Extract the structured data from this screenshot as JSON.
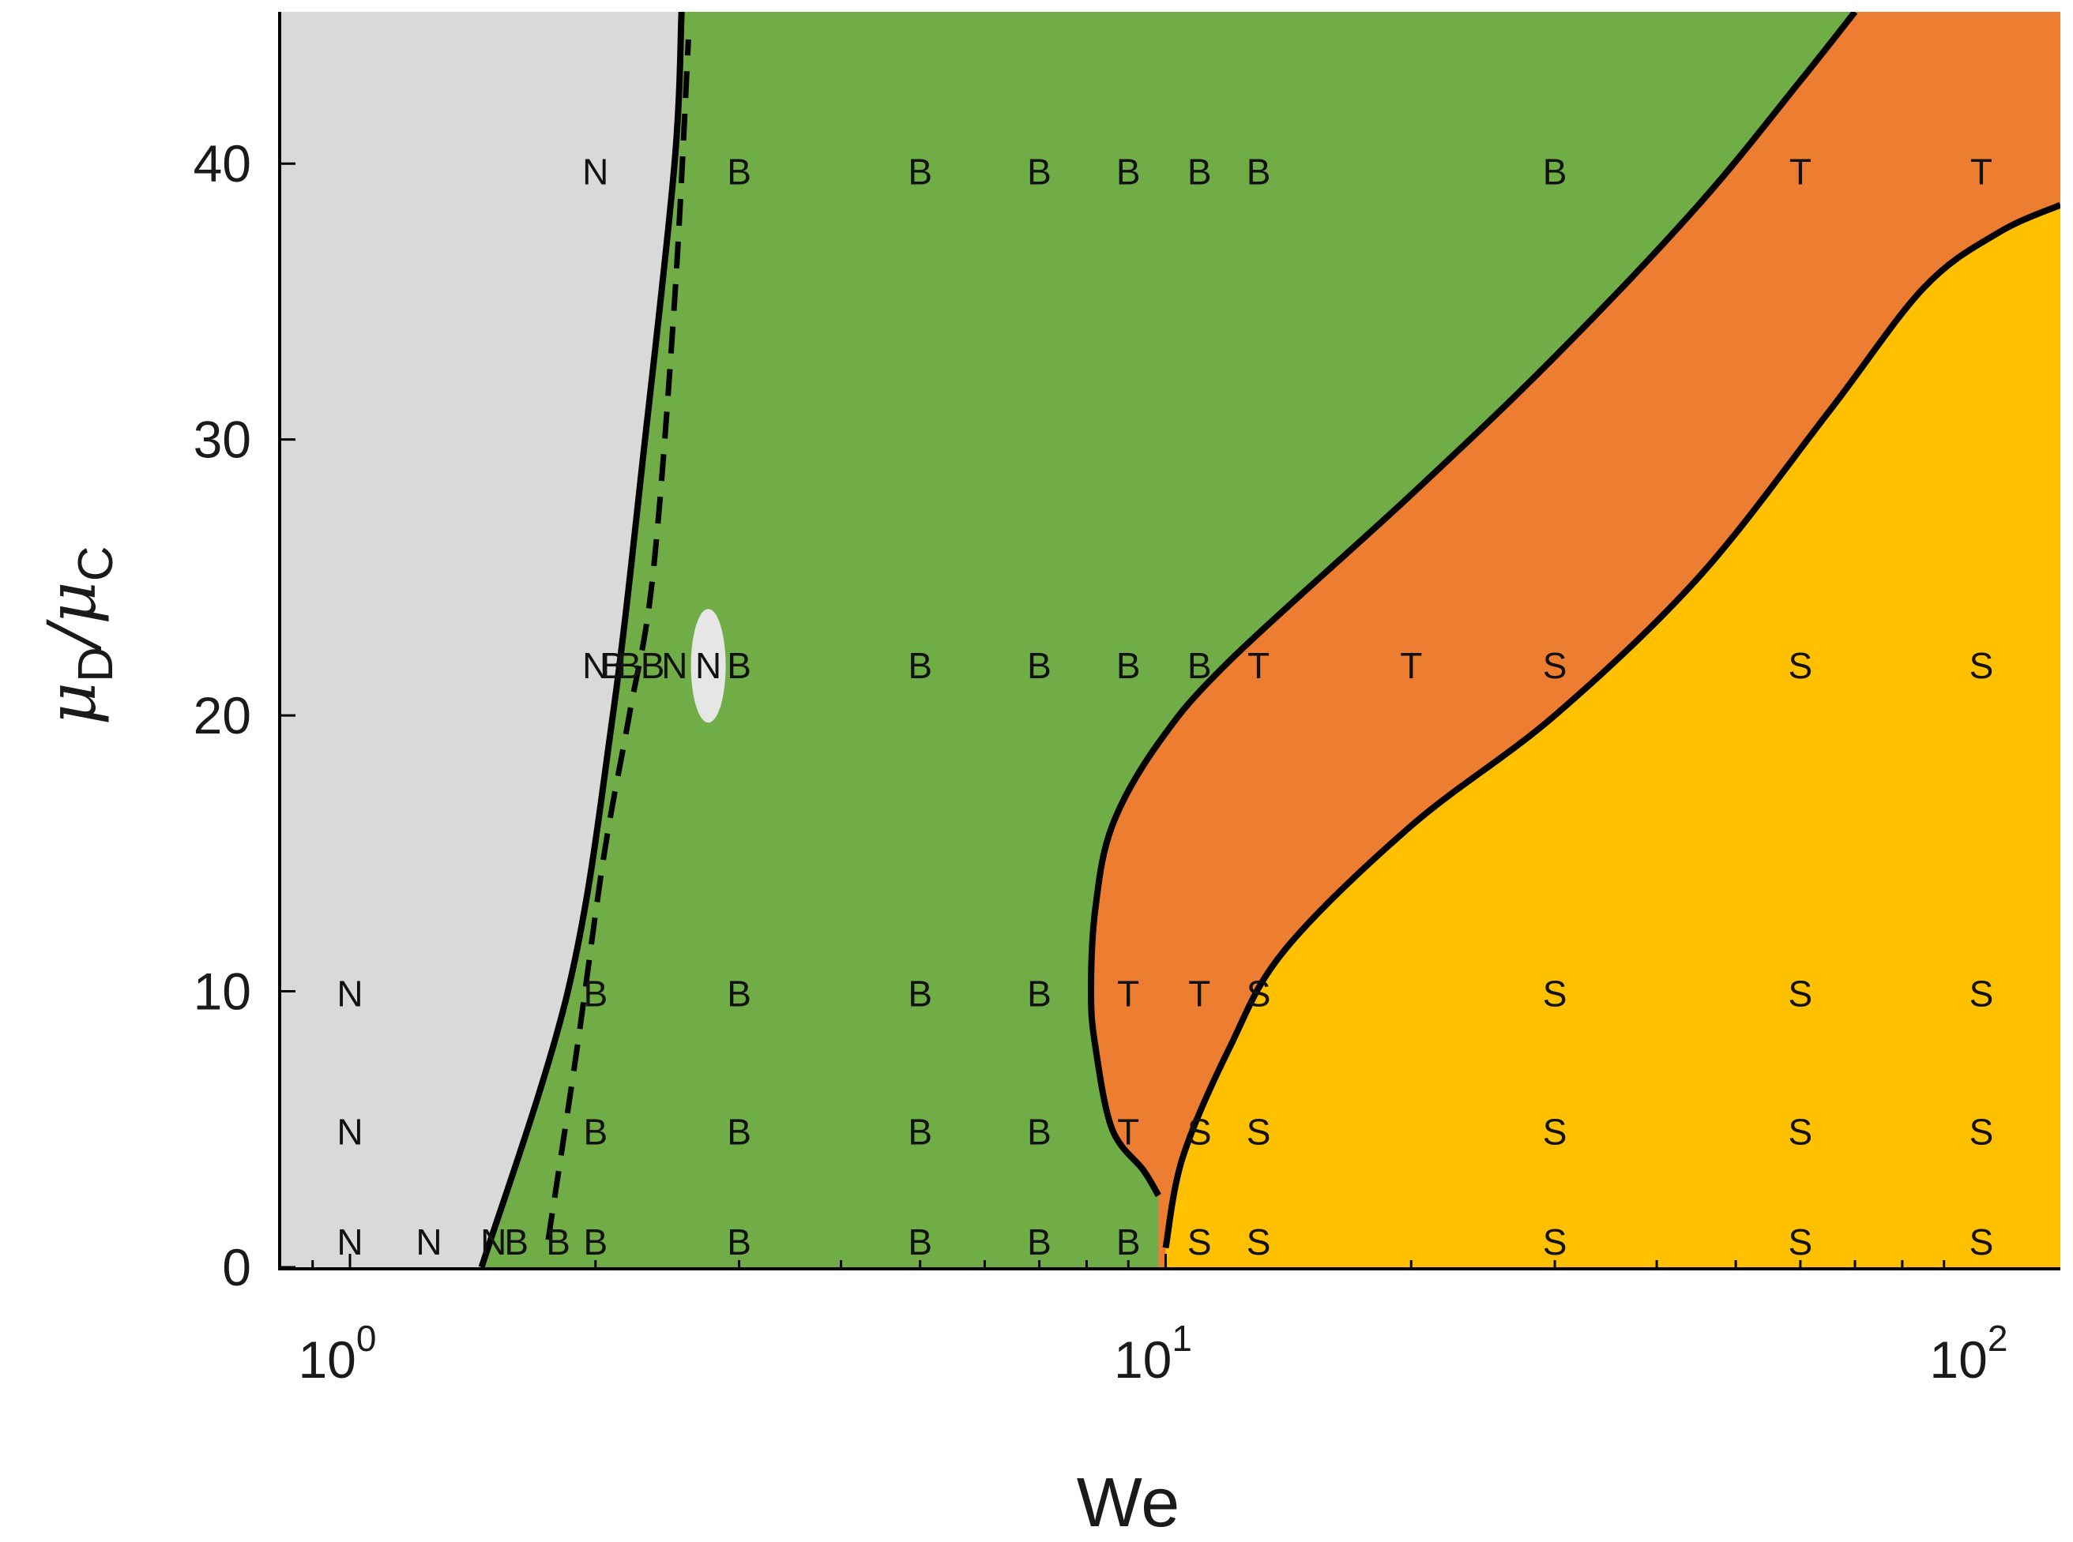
{
  "chart_data": {
    "type": "scatter",
    "subtype": "regime map with labeled markers",
    "title": "",
    "xlabel": "We",
    "ylabel": {
      "base": "μ",
      "sub1": "D",
      "sep": "/",
      "sub2": "C"
    },
    "x_scale": "log",
    "xlim": [
      0.82,
      125
    ],
    "ylim": [
      0,
      45.5
    ],
    "x_ticks": [
      {
        "value": 1,
        "base": "10",
        "exp": "0"
      },
      {
        "value": 10,
        "base": "10",
        "exp": "1"
      },
      {
        "value": 100,
        "base": "10",
        "exp": "2"
      }
    ],
    "y_ticks": [
      0,
      10,
      20,
      30,
      40
    ],
    "grid": false,
    "colors": {
      "N": "#d9d9d9",
      "B": "#70ad47",
      "T": "#ed7d31",
      "S": "#ffc000",
      "boundary": "#000000"
    },
    "regions": [
      {
        "label": "N",
        "color": "#d9d9d9",
        "upper_we_boundary": [
          [
            1.45,
            0
          ],
          [
            1.85,
            10
          ],
          [
            2.1,
            20
          ],
          [
            2.3,
            30
          ],
          [
            2.5,
            40
          ],
          [
            2.55,
            45.5
          ]
        ]
      },
      {
        "label": "B",
        "color": "#70ad47"
      },
      {
        "label": "T",
        "color": "#ed7d31",
        "lower_we_boundary": [
          [
            9.8,
            2.6
          ],
          [
            9.4,
            3.5
          ],
          [
            8.6,
            5
          ],
          [
            8.2,
            8
          ],
          [
            8.1,
            10
          ],
          [
            8.2,
            13
          ],
          [
            8.6,
            16
          ],
          [
            9.8,
            19
          ],
          [
            12,
            22
          ],
          [
            20,
            28
          ],
          [
            30,
            33
          ],
          [
            45,
            38.5
          ],
          [
            60,
            43
          ],
          [
            70,
            45.5
          ]
        ]
      },
      {
        "label": "S",
        "color": "#ffc000",
        "lower_we_boundary": [
          [
            10,
            0.7
          ],
          [
            10.5,
            4
          ],
          [
            12,
            8
          ],
          [
            14,
            11.5
          ],
          [
            20,
            16
          ],
          [
            30,
            20
          ],
          [
            45,
            25
          ],
          [
            65,
            31
          ],
          [
            85,
            35.5
          ],
          [
            105,
            37.5
          ],
          [
            125,
            38.5
          ]
        ]
      }
    ],
    "points": [
      {
        "x": 1.0,
        "y": 0.8,
        "label": "N"
      },
      {
        "x": 1.25,
        "y": 0.8,
        "label": "N"
      },
      {
        "x": 1.5,
        "y": 0.8,
        "label": "N"
      },
      {
        "x": 1.6,
        "y": 0.8,
        "label": "B"
      },
      {
        "x": 1.8,
        "y": 0.8,
        "label": "B"
      },
      {
        "x": 2.0,
        "y": 0.8,
        "label": "B"
      },
      {
        "x": 3.0,
        "y": 0.8,
        "label": "B"
      },
      {
        "x": 5.0,
        "y": 0.8,
        "label": "B"
      },
      {
        "x": 7.0,
        "y": 0.8,
        "label": "B"
      },
      {
        "x": 9.0,
        "y": 0.8,
        "label": "B"
      },
      {
        "x": 11.0,
        "y": 0.8,
        "label": "S"
      },
      {
        "x": 13.0,
        "y": 0.8,
        "label": "S"
      },
      {
        "x": 30.0,
        "y": 0.8,
        "label": "S"
      },
      {
        "x": 60.0,
        "y": 0.8,
        "label": "S"
      },
      {
        "x": 100.0,
        "y": 0.8,
        "label": "S"
      },
      {
        "x": 1.0,
        "y": 4.8,
        "label": "N"
      },
      {
        "x": 2.0,
        "y": 4.8,
        "label": "B"
      },
      {
        "x": 3.0,
        "y": 4.8,
        "label": "B"
      },
      {
        "x": 5.0,
        "y": 4.8,
        "label": "B"
      },
      {
        "x": 7.0,
        "y": 4.8,
        "label": "B"
      },
      {
        "x": 9.0,
        "y": 4.8,
        "label": "T"
      },
      {
        "x": 11.0,
        "y": 4.8,
        "label": "S"
      },
      {
        "x": 13.0,
        "y": 4.8,
        "label": "S"
      },
      {
        "x": 30.0,
        "y": 4.8,
        "label": "S"
      },
      {
        "x": 60.0,
        "y": 4.8,
        "label": "S"
      },
      {
        "x": 100.0,
        "y": 4.8,
        "label": "S"
      },
      {
        "x": 1.0,
        "y": 9.8,
        "label": "N"
      },
      {
        "x": 2.0,
        "y": 9.8,
        "label": "B"
      },
      {
        "x": 3.0,
        "y": 9.8,
        "label": "B"
      },
      {
        "x": 5.0,
        "y": 9.8,
        "label": "B"
      },
      {
        "x": 7.0,
        "y": 9.8,
        "label": "B"
      },
      {
        "x": 9.0,
        "y": 9.8,
        "label": "T"
      },
      {
        "x": 11.0,
        "y": 9.8,
        "label": "T"
      },
      {
        "x": 13.0,
        "y": 9.8,
        "label": "S"
      },
      {
        "x": 30.0,
        "y": 9.8,
        "label": "S"
      },
      {
        "x": 60.0,
        "y": 9.8,
        "label": "S"
      },
      {
        "x": 100.0,
        "y": 9.8,
        "label": "S"
      },
      {
        "x": 2.0,
        "y": 21.7,
        "label": "N"
      },
      {
        "x": 2.1,
        "y": 21.7,
        "label": "B"
      },
      {
        "x": 2.2,
        "y": 21.7,
        "label": "B"
      },
      {
        "x": 2.35,
        "y": 21.7,
        "label": "B"
      },
      {
        "x": 2.5,
        "y": 21.7,
        "label": "N"
      },
      {
        "x": 2.75,
        "y": 21.7,
        "label": "N"
      },
      {
        "x": 3.0,
        "y": 21.7,
        "label": "B"
      },
      {
        "x": 5.0,
        "y": 21.7,
        "label": "B"
      },
      {
        "x": 7.0,
        "y": 21.7,
        "label": "B"
      },
      {
        "x": 9.0,
        "y": 21.7,
        "label": "B"
      },
      {
        "x": 11.0,
        "y": 21.7,
        "label": "B"
      },
      {
        "x": 13.0,
        "y": 21.7,
        "label": "T"
      },
      {
        "x": 20.0,
        "y": 21.7,
        "label": "T"
      },
      {
        "x": 30.0,
        "y": 21.7,
        "label": "S"
      },
      {
        "x": 60.0,
        "y": 21.7,
        "label": "S"
      },
      {
        "x": 100.0,
        "y": 21.7,
        "label": "S"
      },
      {
        "x": 2.0,
        "y": 39.6,
        "label": "N"
      },
      {
        "x": 3.0,
        "y": 39.6,
        "label": "B"
      },
      {
        "x": 5.0,
        "y": 39.6,
        "label": "B"
      },
      {
        "x": 7.0,
        "y": 39.6,
        "label": "B"
      },
      {
        "x": 9.0,
        "y": 39.6,
        "label": "B"
      },
      {
        "x": 11.0,
        "y": 39.6,
        "label": "B"
      },
      {
        "x": 13.0,
        "y": 39.6,
        "label": "B"
      },
      {
        "x": 30.0,
        "y": 39.6,
        "label": "B"
      },
      {
        "x": 60.0,
        "y": 39.6,
        "label": "T"
      },
      {
        "x": 100.0,
        "y": 39.6,
        "label": "T"
      }
    ],
    "dashed_boundary": [
      [
        1.75,
        1
      ],
      [
        1.9,
        8
      ],
      [
        2.05,
        15
      ],
      [
        2.2,
        20
      ],
      [
        2.35,
        25
      ],
      [
        2.5,
        35
      ],
      [
        2.6,
        44.5
      ]
    ],
    "highlight_marker": {
      "x": 2.75,
      "y": 21.8,
      "shape": "ellipse",
      "color": "#e6e6e6"
    }
  }
}
